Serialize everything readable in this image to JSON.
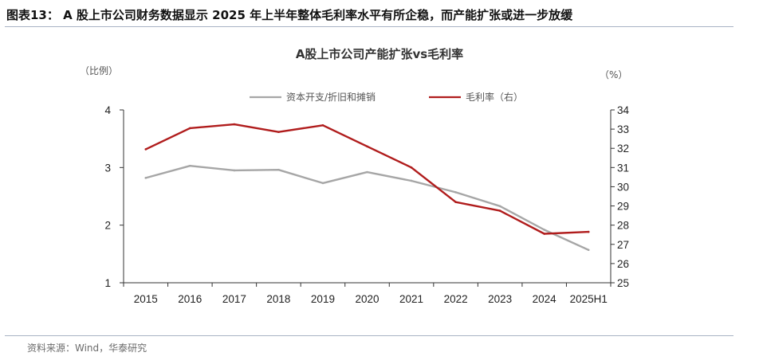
{
  "figure_title": "图表13： A 股上市公司财务数据显示 2025 年上半年整体毛利率水平有所企稳，而产能扩张或进一步放缓",
  "source": "资料来源：Wind，华泰研究",
  "chart_data": {
    "type": "line",
    "title": "A股上市公司产能扩张vs毛利率",
    "y_left_unit": "（比例）",
    "y_right_unit": "（%）",
    "categories": [
      "2015",
      "2016",
      "2017",
      "2018",
      "2019",
      "2020",
      "2021",
      "2022",
      "2023",
      "2024",
      "2025H1"
    ],
    "y_left": {
      "min": 1,
      "max": 4,
      "ticks": [
        "1",
        "2",
        "3",
        "4"
      ]
    },
    "y_right": {
      "min": 25,
      "max": 34,
      "ticks": [
        "25",
        "26",
        "27",
        "28",
        "29",
        "30",
        "31",
        "32",
        "33",
        "34"
      ]
    },
    "series": [
      {
        "name": "资本开支/折旧和摊销",
        "axis": "left",
        "color": "#a6a6a6",
        "values": [
          2.82,
          3.03,
          2.95,
          2.96,
          2.73,
          2.92,
          2.77,
          2.57,
          2.33,
          1.92,
          1.57
        ]
      },
      {
        "name": "毛利率（右）",
        "axis": "right",
        "color": "#b01c1c",
        "values": [
          31.95,
          33.05,
          33.25,
          32.85,
          33.2,
          32.1,
          31.0,
          29.2,
          28.75,
          27.55,
          27.65
        ]
      }
    ],
    "grid": false,
    "legend_position": "top-center"
  }
}
